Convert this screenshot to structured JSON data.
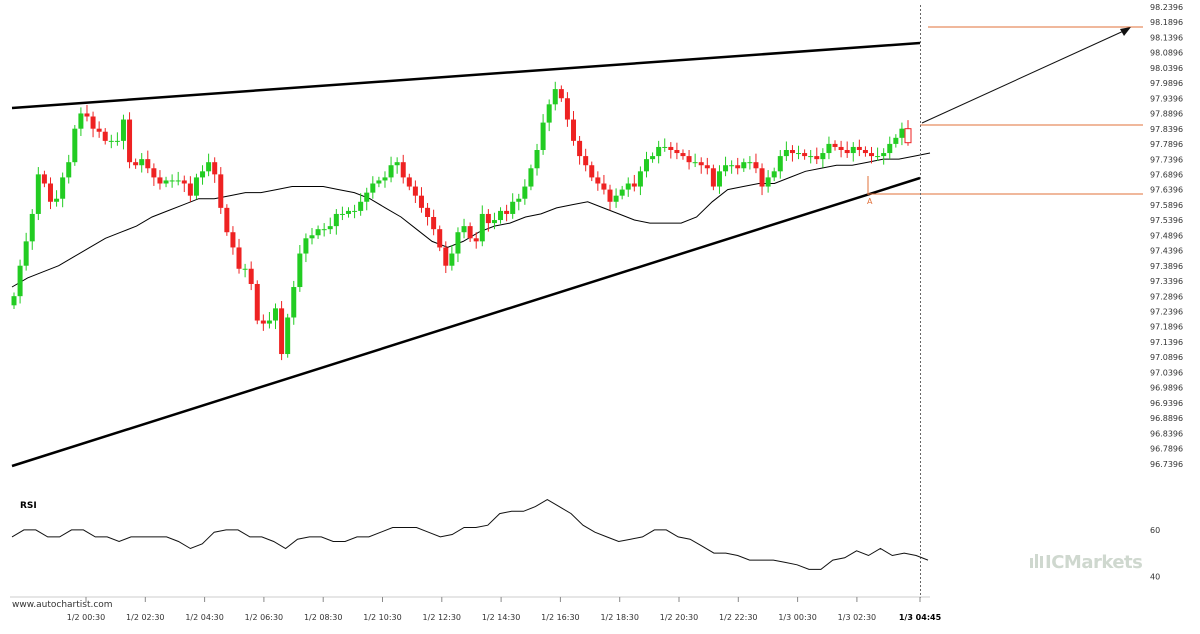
{
  "chart_data": [
    {
      "type": "candlestick",
      "title": "",
      "ylim": [
        96.6896,
        98.2396
      ],
      "y_ticks": [
        "98.2396",
        "98.1896",
        "98.1396",
        "98.0896",
        "98.0396",
        "97.9896",
        "97.9396",
        "97.8896",
        "97.8396",
        "97.7896",
        "97.7396",
        "97.6896",
        "97.6396",
        "97.5896",
        "97.5396",
        "97.4896",
        "97.4396",
        "97.3896",
        "97.3396",
        "97.2896",
        "97.2396",
        "97.1896",
        "97.1396",
        "97.0896",
        "97.0396",
        "96.9896",
        "96.9396",
        "96.8896",
        "96.8396",
        "96.7896",
        "96.7396"
      ],
      "x_ticks": [
        "1/2 00:30",
        "1/2 02:30",
        "1/2 04:30",
        "1/2 06:30",
        "1/2 08:30",
        "1/2 10:30",
        "1/2 12:30",
        "1/2 14:30",
        "1/2 16:30",
        "1/2 18:30",
        "1/2 20:30",
        "1/2 22:30",
        "1/3 00:30",
        "1/3 02:30",
        "1/3 04:45"
      ],
      "colors": {
        "up": "#22cc22",
        "down": "#ee2222",
        "pattern": "#000000",
        "levels": "#e0703a",
        "ma": "#000000"
      },
      "candle_closes": [
        97.29,
        97.39,
        97.47,
        97.56,
        97.69,
        97.66,
        97.6,
        97.61,
        97.68,
        97.73,
        97.84,
        97.89,
        97.88,
        97.84,
        97.83,
        97.8,
        97.8,
        97.8,
        97.87,
        97.73,
        97.72,
        97.74,
        97.71,
        97.68,
        97.66,
        97.67,
        97.67,
        97.67,
        97.66,
        97.62,
        97.68,
        97.7,
        97.73,
        97.69,
        97.58,
        97.5,
        97.45,
        97.38,
        97.38,
        97.33,
        97.21,
        97.2,
        97.21,
        97.25,
        97.1,
        97.22,
        97.32,
        97.43,
        97.48,
        97.49,
        97.51,
        97.51,
        97.52,
        97.56,
        97.56,
        97.57,
        97.57,
        97.6,
        97.63,
        97.66,
        97.67,
        97.68,
        97.72,
        97.73,
        97.68,
        97.65,
        97.62,
        97.58,
        97.55,
        97.51,
        97.45,
        97.39,
        97.43,
        97.5,
        97.52,
        97.48,
        97.47,
        97.56,
        97.53,
        97.54,
        97.57,
        97.56,
        97.6,
        97.61,
        97.65,
        97.71,
        97.77,
        97.86,
        97.92,
        97.97,
        97.94,
        97.87,
        97.8,
        97.75,
        97.72,
        97.68,
        97.66,
        97.64,
        97.6,
        97.62,
        97.64,
        97.66,
        97.65,
        97.7,
        97.74,
        97.75,
        97.78,
        97.78,
        97.77,
        97.76,
        97.75,
        97.73,
        97.73,
        97.72,
        97.71,
        97.65,
        97.7,
        97.72,
        97.72,
        97.71,
        97.73,
        97.73,
        97.71,
        97.65,
        97.68,
        97.7,
        97.75,
        97.77,
        97.76,
        97.76,
        97.75,
        97.75,
        97.74,
        97.76,
        97.79,
        97.78,
        97.77,
        97.76,
        97.78,
        97.77,
        97.76,
        97.75,
        97.75,
        97.76,
        97.79,
        97.81,
        97.84,
        97.8
      ],
      "ma_values": [
        97.32,
        97.35,
        97.37,
        97.39,
        97.42,
        97.45,
        97.48,
        97.5,
        97.52,
        97.55,
        97.57,
        97.59,
        97.61,
        97.61,
        97.62,
        97.63,
        97.63,
        97.64,
        97.65,
        97.65,
        97.65,
        97.64,
        97.63,
        97.61,
        97.58,
        97.55,
        97.51,
        97.47,
        97.45,
        97.47,
        97.5,
        97.52,
        97.53,
        97.55,
        97.56,
        97.58,
        97.59,
        97.6,
        97.58,
        97.56,
        97.54,
        97.53,
        97.53,
        97.53,
        97.55,
        97.6,
        97.64,
        97.65,
        97.66,
        97.66,
        97.68,
        97.7,
        97.71,
        97.72,
        97.72,
        97.73,
        97.74,
        97.74,
        97.75,
        97.76
      ],
      "rsi": {
        "title": "RSI",
        "ylim": [
          35,
          75
        ],
        "y_ticks": [
          "60",
          "40"
        ],
        "values": [
          57,
          60,
          60,
          57,
          57,
          60,
          60,
          57,
          57,
          55,
          57,
          57,
          57,
          57,
          55,
          52,
          54,
          59,
          60,
          60,
          57,
          57,
          55,
          52,
          56,
          57,
          57,
          55,
          55,
          57,
          57,
          59,
          61,
          61,
          61,
          59,
          57,
          58,
          61,
          61,
          62,
          67,
          68,
          68,
          70,
          73,
          70,
          67,
          62,
          59,
          57,
          55,
          56,
          57,
          60,
          60,
          57,
          56,
          53,
          50,
          50,
          49,
          47,
          47,
          47,
          46,
          45,
          43,
          43,
          47,
          48,
          51,
          49,
          52,
          49,
          50,
          49,
          47
        ]
      },
      "annotations": [
        "A"
      ]
    }
  ],
  "footer": {
    "watermark": "www.autochartist.com",
    "brand": "ICMarkets"
  }
}
